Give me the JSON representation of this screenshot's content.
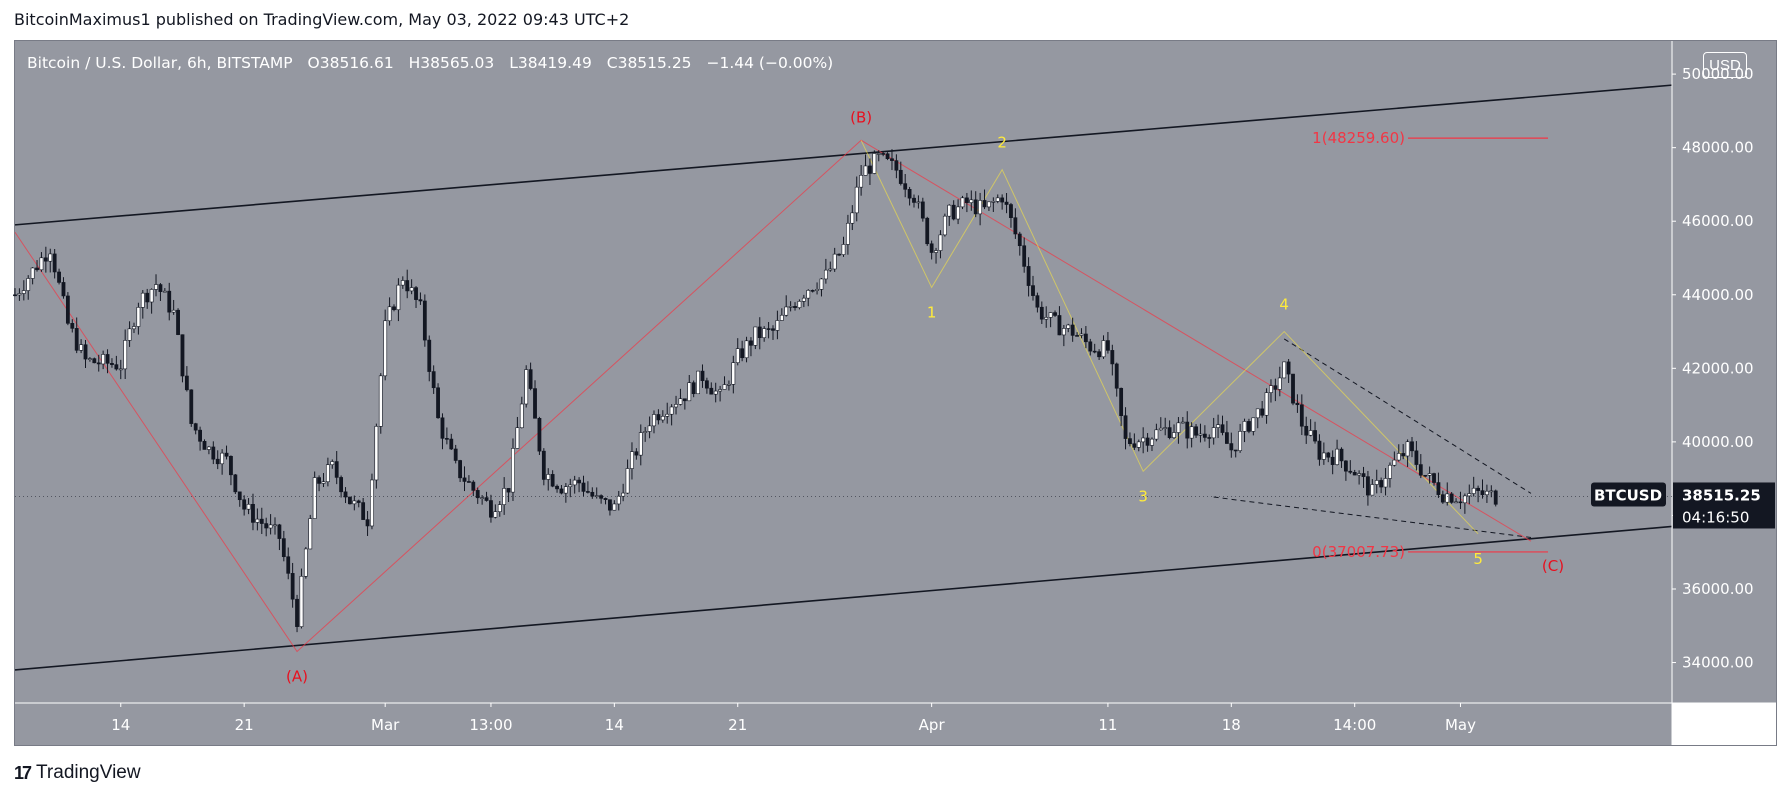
{
  "header": {
    "publisher": "BitcoinMaximus1 published on TradingView.com, May 03, 2022 09:43 UTC+2"
  },
  "legend": {
    "symbol": "Bitcoin / U.S. Dollar, 6h, BITSTAMP",
    "open_label": "O",
    "open": "38516.61",
    "high_label": "H",
    "high": "38565.03",
    "low_label": "L",
    "low": "38419.49",
    "close_label": "C",
    "close": "38515.25",
    "change": "−1.44 (−0.00%)"
  },
  "currency_badge": "USD",
  "price_tag": {
    "symbol": "BTCUSD",
    "price": "38515.25",
    "countdown": "04:16:50"
  },
  "footer": {
    "logo_text": "TradingView",
    "logo_mark": "17"
  },
  "colors": {
    "background": "#9598a1",
    "candle_up": "#ffffff",
    "candle_down": "#131722",
    "wave_red": "#f23645",
    "wave_yellow": "#ffeb3b",
    "channel": "#131722"
  },
  "chart_data": {
    "type": "candlestick",
    "title": "Bitcoin / U.S. Dollar, 6h, BITSTAMP",
    "y_ticks": [
      "34000.00",
      "36000.00",
      "38000.00",
      "40000.00",
      "42000.00",
      "44000.00",
      "46000.00",
      "48000.00",
      "50000.00"
    ],
    "ylim": [
      32900,
      50900
    ],
    "x_ticks": [
      {
        "date": "2022-02-14",
        "label": "14"
      },
      {
        "date": "2022-02-21",
        "label": "21"
      },
      {
        "date": "2022-03-01",
        "label": "Mar"
      },
      {
        "date": "2022-03-07",
        "label": "13:00"
      },
      {
        "date": "2022-03-14",
        "label": "14"
      },
      {
        "date": "2022-03-21",
        "label": "21"
      },
      {
        "date": "2022-04-01",
        "label": "Apr"
      },
      {
        "date": "2022-04-11",
        "label": "11"
      },
      {
        "date": "2022-04-18",
        "label": "18"
      },
      {
        "date": "2022-04-25",
        "label": "14:00"
      },
      {
        "date": "2022-05-01",
        "label": "May"
      }
    ],
    "xlim": [
      "2022-02-08",
      "2022-05-13"
    ],
    "price_path": [
      [
        "2022-02-08",
        44000
      ],
      [
        "2022-02-10",
        45300
      ],
      [
        "2022-02-11",
        43200
      ],
      [
        "2022-02-12",
        42200
      ],
      [
        "2022-02-14",
        42100
      ],
      [
        "2022-02-15",
        43800
      ],
      [
        "2022-02-16",
        44300
      ],
      [
        "2022-02-17",
        43500
      ],
      [
        "2022-02-18",
        40500
      ],
      [
        "2022-02-19",
        39800
      ],
      [
        "2022-02-20",
        39500
      ],
      [
        "2022-02-21",
        38200
      ],
      [
        "2022-02-22",
        37800
      ],
      [
        "2022-02-23",
        37400
      ],
      [
        "2022-02-24",
        35200
      ],
      [
        "2022-02-25",
        38800
      ],
      [
        "2022-02-26",
        39300
      ],
      [
        "2022-02-27",
        38400
      ],
      [
        "2022-02-28",
        37900
      ],
      [
        "2022-03-01",
        43100
      ],
      [
        "2022-03-02",
        44500
      ],
      [
        "2022-03-03",
        43600
      ],
      [
        "2022-03-04",
        40600
      ],
      [
        "2022-03-05",
        39300
      ],
      [
        "2022-03-06",
        38700
      ],
      [
        "2022-03-07",
        38200
      ],
      [
        "2022-03-08",
        38800
      ],
      [
        "2022-03-09",
        41900
      ],
      [
        "2022-03-10",
        39200
      ],
      [
        "2022-03-11",
        38800
      ],
      [
        "2022-03-12",
        38900
      ],
      [
        "2022-03-13",
        38400
      ],
      [
        "2022-03-14",
        38200
      ],
      [
        "2022-03-15",
        39500
      ],
      [
        "2022-03-16",
        40600
      ],
      [
        "2022-03-17",
        41000
      ],
      [
        "2022-03-18",
        41300
      ],
      [
        "2022-03-19",
        41800
      ],
      [
        "2022-03-20",
        41200
      ],
      [
        "2022-03-21",
        42300
      ],
      [
        "2022-03-22",
        42900
      ],
      [
        "2022-03-23",
        43000
      ],
      [
        "2022-03-24",
        43700
      ],
      [
        "2022-03-25",
        44200
      ],
      [
        "2022-03-26",
        44500
      ],
      [
        "2022-03-27",
        45300
      ],
      [
        "2022-03-28",
        47300
      ],
      [
        "2022-03-29",
        47700
      ],
      [
        "2022-03-30",
        47400
      ],
      [
        "2022-03-31",
        46700
      ],
      [
        "2022-04-01",
        45200
      ],
      [
        "2022-04-02",
        46200
      ],
      [
        "2022-04-03",
        46500
      ],
      [
        "2022-04-04",
        46300
      ],
      [
        "2022-04-05",
        46700
      ],
      [
        "2022-04-06",
        45300
      ],
      [
        "2022-04-07",
        43600
      ],
      [
        "2022-04-08",
        43200
      ],
      [
        "2022-04-09",
        43000
      ],
      [
        "2022-04-10",
        42600
      ],
      [
        "2022-04-11",
        42500
      ],
      [
        "2022-04-12",
        40000
      ],
      [
        "2022-04-13",
        40100
      ],
      [
        "2022-04-14",
        40300
      ],
      [
        "2022-04-15",
        40400
      ],
      [
        "2022-04-16",
        40200
      ],
      [
        "2022-04-17",
        40400
      ],
      [
        "2022-04-18",
        39800
      ],
      [
        "2022-04-19",
        40500
      ],
      [
        "2022-04-20",
        41100
      ],
      [
        "2022-04-21",
        42000
      ],
      [
        "2022-04-22",
        40500
      ],
      [
        "2022-04-23",
        39700
      ],
      [
        "2022-04-24",
        39600
      ],
      [
        "2022-04-25",
        39200
      ],
      [
        "2022-04-26",
        38600
      ],
      [
        "2022-04-27",
        39300
      ],
      [
        "2022-04-28",
        39800
      ],
      [
        "2022-04-29",
        39100
      ],
      [
        "2022-04-30",
        38600
      ],
      [
        "2022-05-01",
        38500
      ],
      [
        "2022-05-02",
        38600
      ],
      [
        "2022-05-03",
        38515
      ]
    ],
    "channel": [
      {
        "name": "upper",
        "points": [
          [
            "2022-02-08",
            45900
          ],
          [
            "2022-05-13",
            49700
          ]
        ]
      },
      {
        "name": "lower",
        "points": [
          [
            "2022-02-08",
            33800
          ],
          [
            "2022-05-13",
            37700
          ]
        ]
      }
    ],
    "wedge": [
      {
        "name": "upper",
        "points": [
          [
            "2022-04-21",
            42800
          ],
          [
            "2022-05-05",
            38600
          ]
        ]
      },
      {
        "name": "lower",
        "points": [
          [
            "2022-04-17",
            38500
          ],
          [
            "2022-05-05",
            37400
          ]
        ]
      }
    ],
    "abc_waves": [
      {
        "label": "(A)",
        "date": "2022-02-24",
        "price": 34300
      },
      {
        "label": "(B)",
        "date": "2022-03-28",
        "price": 48200
      },
      {
        "label": "(C)",
        "date": "2022-05-05",
        "price": 37300
      }
    ],
    "impulse_waves": [
      {
        "label": "1",
        "date": "2022-04-01",
        "price": 44200
      },
      {
        "label": "2",
        "date": "2022-04-05",
        "price": 47400
      },
      {
        "label": "3",
        "date": "2022-04-13",
        "price": 39200
      },
      {
        "label": "4",
        "date": "2022-04-21",
        "price": 43000
      },
      {
        "label": "5",
        "date": "2022-05-02",
        "price": 37500
      }
    ],
    "fib_levels": [
      {
        "label": "1(48259.60)",
        "price": 48259.6
      },
      {
        "label": "0(37007.73)",
        "price": 37007.73
      }
    ],
    "last_price": 38515.25
  }
}
